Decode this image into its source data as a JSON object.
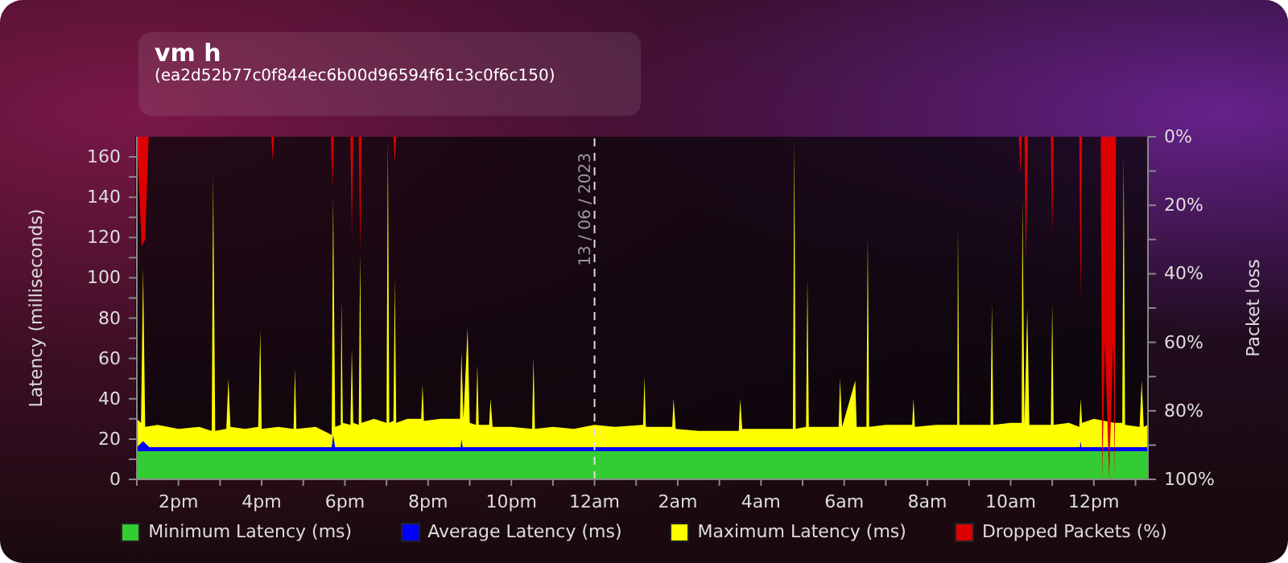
{
  "chart_data": {
    "type": "area",
    "title": "vm h",
    "subtitle": "(ea2d52b77c0f844ec6b00d96594f61c3c0f6c150)",
    "ylabel": "Latency (milliseconds)",
    "y2label": "Packet loss",
    "xlim": [
      "2023-06-12T13:00",
      "2023-06-13T13:18"
    ],
    "xticks": [
      {
        "value": "2023-06-12T13:00",
        "label": null
      },
      {
        "value": "2023-06-12T14:00",
        "label": "2pm"
      },
      {
        "value": "2023-06-12T15:00",
        "label": null
      },
      {
        "value": "2023-06-12T16:00",
        "label": "4pm"
      },
      {
        "value": "2023-06-12T17:00",
        "label": null
      },
      {
        "value": "2023-06-12T18:00",
        "label": "6pm"
      },
      {
        "value": "2023-06-12T19:00",
        "label": null
      },
      {
        "value": "2023-06-12T20:00",
        "label": "8pm"
      },
      {
        "value": "2023-06-12T21:00",
        "label": null
      },
      {
        "value": "2023-06-12T22:00",
        "label": "10pm"
      },
      {
        "value": "2023-06-12T23:00",
        "label": null
      },
      {
        "value": "2023-06-13T00:00",
        "label": "12am"
      },
      {
        "value": "2023-06-13T01:00",
        "label": null
      },
      {
        "value": "2023-06-13T02:00",
        "label": "2am"
      },
      {
        "value": "2023-06-13T03:00",
        "label": null
      },
      {
        "value": "2023-06-13T04:00",
        "label": "4am"
      },
      {
        "value": "2023-06-13T05:00",
        "label": null
      },
      {
        "value": "2023-06-13T06:00",
        "label": "6am"
      },
      {
        "value": "2023-06-13T07:00",
        "label": null
      },
      {
        "value": "2023-06-13T08:00",
        "label": "8am"
      },
      {
        "value": "2023-06-13T09:00",
        "label": null
      },
      {
        "value": "2023-06-13T10:00",
        "label": "10am"
      },
      {
        "value": "2023-06-13T11:00",
        "label": null
      },
      {
        "value": "2023-06-13T12:00",
        "label": "12pm"
      },
      {
        "value": "2023-06-13T13:00",
        "label": null
      }
    ],
    "ylim": [
      0,
      170
    ],
    "yticks": [
      0,
      {
        "value": 10,
        "label": null
      },
      20,
      {
        "value": 30,
        "label": null
      },
      40,
      {
        "value": 50,
        "label": null
      },
      60,
      {
        "value": 70,
        "label": null
      },
      80,
      {
        "value": 90,
        "label": null
      },
      100,
      {
        "value": 110,
        "label": null
      },
      120,
      {
        "value": 130,
        "label": null
      },
      140,
      {
        "value": 150,
        "label": null
      },
      160
    ],
    "y2lim": [
      100,
      0
    ],
    "y2ticks": [
      {
        "value": 0,
        "label": "0%"
      },
      {
        "value": 10,
        "label": null
      },
      {
        "value": 20,
        "label": "20%"
      },
      {
        "value": 30,
        "label": null
      },
      {
        "value": 40,
        "label": "40%"
      },
      {
        "value": 50,
        "label": null
      },
      {
        "value": 60,
        "label": "60%"
      },
      {
        "value": 70,
        "label": null
      },
      {
        "value": 80,
        "label": "80%"
      },
      {
        "value": 90,
        "label": null
      },
      {
        "value": 100,
        "label": "100%"
      }
    ],
    "ref_lines": [
      {
        "axis": "x",
        "value": "2023-06-13T00:00",
        "label": "13 / 06 / 2023",
        "color": "#dddddd",
        "line_style": "dashed"
      }
    ],
    "legend": "bottom",
    "grid": false,
    "series": [
      {
        "name": "Minimum Latency (ms)",
        "color": "#33cc33",
        "x": [
          "2023-06-12T13:00",
          "2023-06-13T13:18"
        ],
        "values": [
          14,
          14
        ]
      },
      {
        "name": "Average Latency (ms)",
        "color": "#0000ff",
        "x": [
          "2023-06-12T13:00",
          "2023-06-12T13:09",
          "2023-06-12T13:18",
          "2023-06-12T17:41",
          "2023-06-12T17:43",
          "2023-06-12T17:46",
          "2023-06-12T20:47",
          "2023-06-12T20:48",
          "2023-06-12T20:50",
          "2023-06-13T11:40",
          "2023-06-13T11:41",
          "2023-06-13T11:42",
          "2023-06-13T13:18"
        ],
        "values": [
          16,
          19,
          16,
          16,
          22,
          16,
          16,
          20,
          16,
          16,
          19,
          16,
          16
        ]
      },
      {
        "name": "Maximum Latency (ms)",
        "color": "#ffff00",
        "x": [
          "2023-06-12T13:00",
          "2023-06-12T13:06",
          "2023-06-12T13:09",
          "2023-06-12T13:12",
          "2023-06-12T13:30",
          "2023-06-12T14:00",
          "2023-06-12T14:30",
          "2023-06-12T14:48",
          "2023-06-12T14:50",
          "2023-06-12T14:53",
          "2023-06-12T15:09",
          "2023-06-12T15:12",
          "2023-06-12T15:15",
          "2023-06-12T15:36",
          "2023-06-12T15:55",
          "2023-06-12T15:58",
          "2023-06-12T16:00",
          "2023-06-12T16:24",
          "2023-06-12T16:46",
          "2023-06-12T16:48",
          "2023-06-12T16:50",
          "2023-06-12T17:18",
          "2023-06-12T17:41",
          "2023-06-12T17:43",
          "2023-06-12T17:46",
          "2023-06-12T17:54",
          "2023-06-12T17:55",
          "2023-06-12T17:57",
          "2023-06-12T18:08",
          "2023-06-12T18:10",
          "2023-06-12T18:12",
          "2023-06-12T18:20",
          "2023-06-12T18:22",
          "2023-06-12T18:24",
          "2023-06-12T18:42",
          "2023-06-12T19:00",
          "2023-06-12T19:02",
          "2023-06-12T19:04",
          "2023-06-12T19:10",
          "2023-06-12T19:12",
          "2023-06-12T19:14",
          "2023-06-12T19:30",
          "2023-06-12T19:50",
          "2023-06-12T19:52",
          "2023-06-12T19:54",
          "2023-06-12T20:18",
          "2023-06-12T20:46",
          "2023-06-12T20:48",
          "2023-06-12T20:51",
          "2023-06-12T20:57",
          "2023-06-12T21:00",
          "2023-06-12T21:09",
          "2023-06-12T21:11",
          "2023-06-12T21:13",
          "2023-06-12T21:28",
          "2023-06-12T21:30",
          "2023-06-12T21:33",
          "2023-06-12T22:00",
          "2023-06-12T22:30",
          "2023-06-12T22:32",
          "2023-06-12T22:34",
          "2023-06-12T23:00",
          "2023-06-12T23:30",
          "2023-06-13T00:00",
          "2023-06-13T00:30",
          "2023-06-13T01:10",
          "2023-06-13T01:12",
          "2023-06-13T01:14",
          "2023-06-13T01:52",
          "2023-06-13T01:54",
          "2023-06-13T01:57",
          "2023-06-13T02:30",
          "2023-06-13T03:00",
          "2023-06-13T03:28",
          "2023-06-13T03:30",
          "2023-06-13T03:33",
          "2023-06-13T04:00",
          "2023-06-13T04:46",
          "2023-06-13T04:48",
          "2023-06-13T04:50",
          "2023-06-13T05:05",
          "2023-06-13T05:07",
          "2023-06-13T05:09",
          "2023-06-13T05:52",
          "2023-06-13T05:54",
          "2023-06-13T05:57",
          "2023-06-13T06:16",
          "2023-06-13T06:18",
          "2023-06-13T06:32",
          "2023-06-13T06:34",
          "2023-06-13T06:36",
          "2023-06-13T07:00",
          "2023-06-13T07:38",
          "2023-06-13T07:40",
          "2023-06-13T07:42",
          "2023-06-13T08:12",
          "2023-06-13T08:43",
          "2023-06-13T08:44",
          "2023-06-13T08:46",
          "2023-06-13T09:12",
          "2023-06-13T09:31",
          "2023-06-13T09:33",
          "2023-06-13T09:35",
          "2023-06-13T10:00",
          "2023-06-13T10:16",
          "2023-06-13T10:17",
          "2023-06-13T10:20",
          "2023-06-13T10:24",
          "2023-06-13T10:27",
          "2023-06-13T10:58",
          "2023-06-13T11:00",
          "2023-06-13T11:02",
          "2023-06-13T11:24",
          "2023-06-13T11:39",
          "2023-06-13T11:41",
          "2023-06-13T11:43",
          "2023-06-13T12:00",
          "2023-06-13T12:30",
          "2023-06-13T12:41",
          "2023-06-13T12:43",
          "2023-06-13T12:45",
          "2023-06-13T13:06",
          "2023-06-13T13:09",
          "2023-06-13T13:12",
          "2023-06-13T13:18"
        ],
        "values": [
          30,
          28,
          105,
          26,
          27,
          25,
          26,
          24,
          150,
          24,
          25,
          50,
          26,
          25,
          26,
          74,
          25,
          26,
          25,
          55,
          25,
          26,
          22,
          140,
          26,
          27,
          90,
          28,
          27,
          65,
          28,
          27,
          112,
          28,
          30,
          28,
          168,
          28,
          29,
          100,
          28,
          30,
          30,
          47,
          29,
          30,
          30,
          63,
          30,
          75,
          28,
          27,
          57,
          27,
          27,
          40,
          26,
          26,
          25,
          61,
          25,
          26,
          25,
          27,
          26,
          27,
          51,
          26,
          26,
          40,
          25,
          24,
          24,
          24,
          40,
          25,
          25,
          25,
          168,
          25,
          26,
          100,
          26,
          26,
          50,
          26,
          49,
          26,
          26,
          120,
          26,
          27,
          27,
          40,
          26,
          27,
          27,
          125,
          27,
          27,
          27,
          87,
          27,
          28,
          28,
          139,
          27,
          85,
          27,
          27,
          87,
          27,
          28,
          26,
          40,
          28,
          30,
          28,
          28,
          160,
          27,
          26,
          49,
          26,
          27
        ]
      },
      {
        "name": "Dropped Packets (%)",
        "color": "#dd0000",
        "axis": "y2",
        "x": [
          "2023-06-12T13:00",
          "2023-06-12T13:07",
          "2023-06-12T13:12",
          "2023-06-12T13:17",
          "2023-06-12T16:14",
          "2023-06-12T16:16",
          "2023-06-12T16:18",
          "2023-06-12T17:40",
          "2023-06-12T17:42",
          "2023-06-12T17:44",
          "2023-06-12T18:08",
          "2023-06-12T18:10",
          "2023-06-12T18:12",
          "2023-06-12T18:20",
          "2023-06-12T18:22",
          "2023-06-12T18:24",
          "2023-06-12T19:10",
          "2023-06-12T19:12",
          "2023-06-12T19:14",
          "2023-06-13T10:12",
          "2023-06-13T10:14",
          "2023-06-13T10:16",
          "2023-06-13T10:20",
          "2023-06-13T10:22",
          "2023-06-13T10:25",
          "2023-06-13T10:58",
          "2023-06-13T11:00",
          "2023-06-13T11:02",
          "2023-06-13T11:39",
          "2023-06-13T11:41",
          "2023-06-13T11:43",
          "2023-06-13T12:10",
          "2023-06-13T12:12",
          "2023-06-13T12:16",
          "2023-06-13T12:22",
          "2023-06-13T12:28",
          "2023-06-13T12:30",
          "2023-06-13T12:32",
          "2023-06-13T13:18"
        ],
        "values": [
          0,
          32,
          30,
          0,
          0,
          7,
          0,
          0,
          15,
          0,
          0,
          29,
          0,
          0,
          34,
          0,
          0,
          8,
          0,
          0,
          11,
          0,
          0,
          37,
          0,
          0,
          29,
          0,
          0,
          48,
          0,
          0,
          100,
          60,
          100,
          60,
          100,
          0,
          0
        ]
      }
    ]
  }
}
